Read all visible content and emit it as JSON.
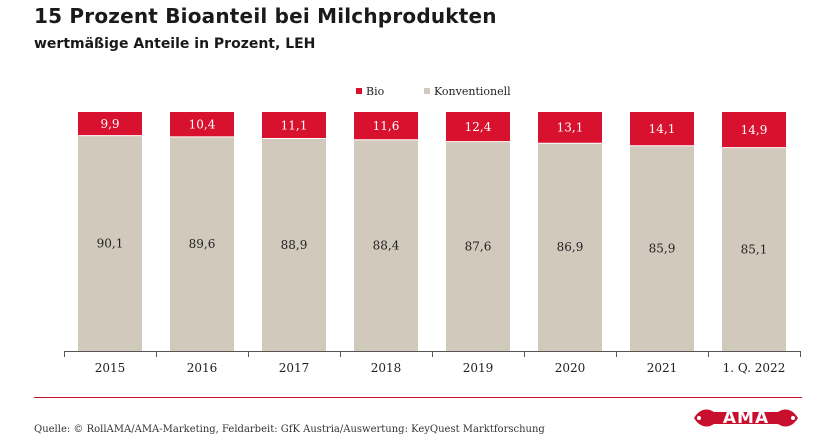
{
  "header": {
    "title": "15 Prozent Bioanteil bei Milchprodukten",
    "subtitle": "wertmäßige Anteile in Prozent, LEH"
  },
  "footer": {
    "source": "Quelle: © RollAMA/AMA-Marketing, Feldarbeit: GfK Austria/Auswertung: KeyQuest Marktforschung",
    "logo_text": "AMA"
  },
  "colors": {
    "bio": "#d7112e",
    "konventionell": "#d2c9bd",
    "accent_line": "#c8102e"
  },
  "chart_data": {
    "type": "bar",
    "stacked": true,
    "percent_stacked": true,
    "categories": [
      "2015",
      "2016",
      "2017",
      "2018",
      "2019",
      "2020",
      "2021",
      "1. Q. 2022"
    ],
    "series": [
      {
        "name": "Konventionell",
        "values": [
          90.1,
          89.6,
          88.9,
          88.4,
          87.6,
          86.9,
          85.9,
          85.1
        ],
        "color": "#d2c9bd"
      },
      {
        "name": "Bio",
        "values": [
          9.9,
          10.4,
          11.1,
          11.6,
          12.4,
          13.1,
          14.1,
          14.9
        ],
        "color": "#d7112e"
      }
    ],
    "value_labels": {
      "Konventionell": [
        "90,1",
        "89,6",
        "88,9",
        "88,4",
        "87,6",
        "86,9",
        "85,9",
        "85,1"
      ],
      "Bio": [
        "9,9",
        "10,4",
        "11,1",
        "11,6",
        "12,4",
        "13,1",
        "14,1",
        "14,9"
      ]
    },
    "legend": {
      "position": "top",
      "entries": [
        "Bio",
        "Konventionell"
      ]
    },
    "ylim": [
      0,
      100
    ],
    "grid": false,
    "title": "15 Prozent Bioanteil bei Milchprodukten",
    "subtitle": "wertmäßige Anteile in Prozent, LEH"
  }
}
